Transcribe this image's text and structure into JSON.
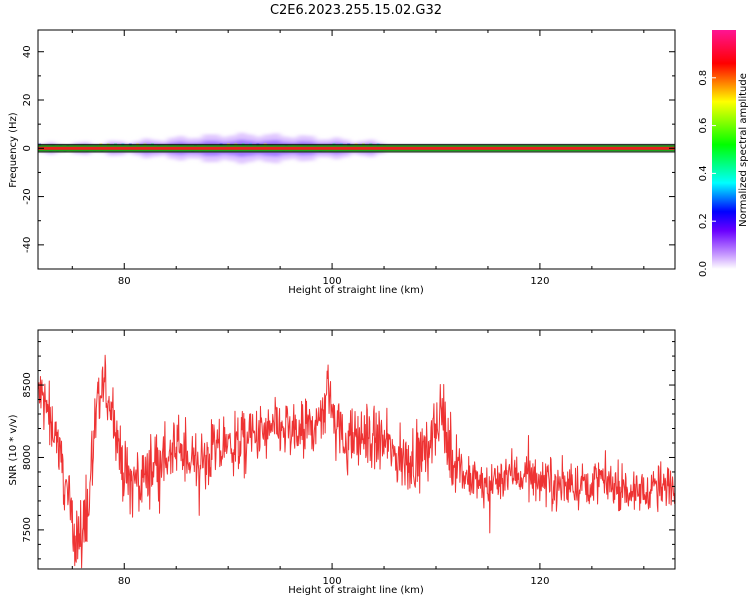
{
  "title": "C2E6.2023.255.15.02.G32",
  "chart_data": [
    {
      "type": "heatmap",
      "xlabel": "Height of straight line (km)",
      "ylabel": "Frequency (Hz)",
      "xlim": [
        71.7,
        133.0
      ],
      "ylim": [
        -50,
        49
      ],
      "x_ticks": [
        80,
        100,
        120
      ],
      "y_ticks": [
        -40,
        -20,
        0,
        20,
        40
      ],
      "colorbar": {
        "label": "Normalized spectral amplitude",
        "range": [
          0.0,
          1.0
        ],
        "ticks": [
          0.0,
          0.2,
          0.4,
          0.6,
          0.8
        ],
        "colormap": [
          "#ffffff",
          "#b366ff",
          "#0000ff",
          "#00ffff",
          "#00ff00",
          "#ffff00",
          "#ff0000",
          "#ff1493"
        ]
      },
      "signal": {
        "center_frequency": 0,
        "core_bandwidth": 1.5,
        "halo_extent_km": [
          71.7,
          105
        ],
        "halo_halfwidth_peak_hz": 4,
        "halo_peak_height_km": 92
      }
    },
    {
      "type": "line",
      "xlabel": "Height of straight line (km)",
      "ylabel": "SNR (10 * v/v)",
      "xlim": [
        71.7,
        133.0
      ],
      "ylim": [
        7230,
        8880
      ],
      "x_ticks": [
        80,
        100,
        120
      ],
      "y_ticks": [
        7500,
        8000,
        8500
      ],
      "color": "#ee3333",
      "series": [
        {
          "x": [
            71.7,
            72.5,
            73.5,
            74.5,
            75.2,
            75.8,
            76.5,
            77.3,
            78.0,
            79.0,
            80.0,
            81.5,
            83.0,
            85.0,
            87.0,
            89.0,
            91.0,
            93.0,
            95.0,
            97.0,
            99.0,
            99.6,
            101.0,
            103.0,
            105.0,
            107.0,
            109.0,
            110.5,
            111.5,
            113.0,
            115.0,
            117.0,
            120.0,
            123.0,
            126.0,
            129.0,
            131.0,
            133.0
          ],
          "y": [
            8450,
            8350,
            8150,
            7750,
            7500,
            7420,
            7650,
            8250,
            8500,
            8300,
            7850,
            7850,
            7950,
            8050,
            7950,
            8050,
            8100,
            8150,
            8200,
            8150,
            8250,
            8500,
            8100,
            8150,
            8100,
            7950,
            8050,
            8300,
            8000,
            7850,
            7800,
            7900,
            7850,
            7800,
            7850,
            7750,
            7800,
            7800
          ]
        }
      ]
    }
  ]
}
